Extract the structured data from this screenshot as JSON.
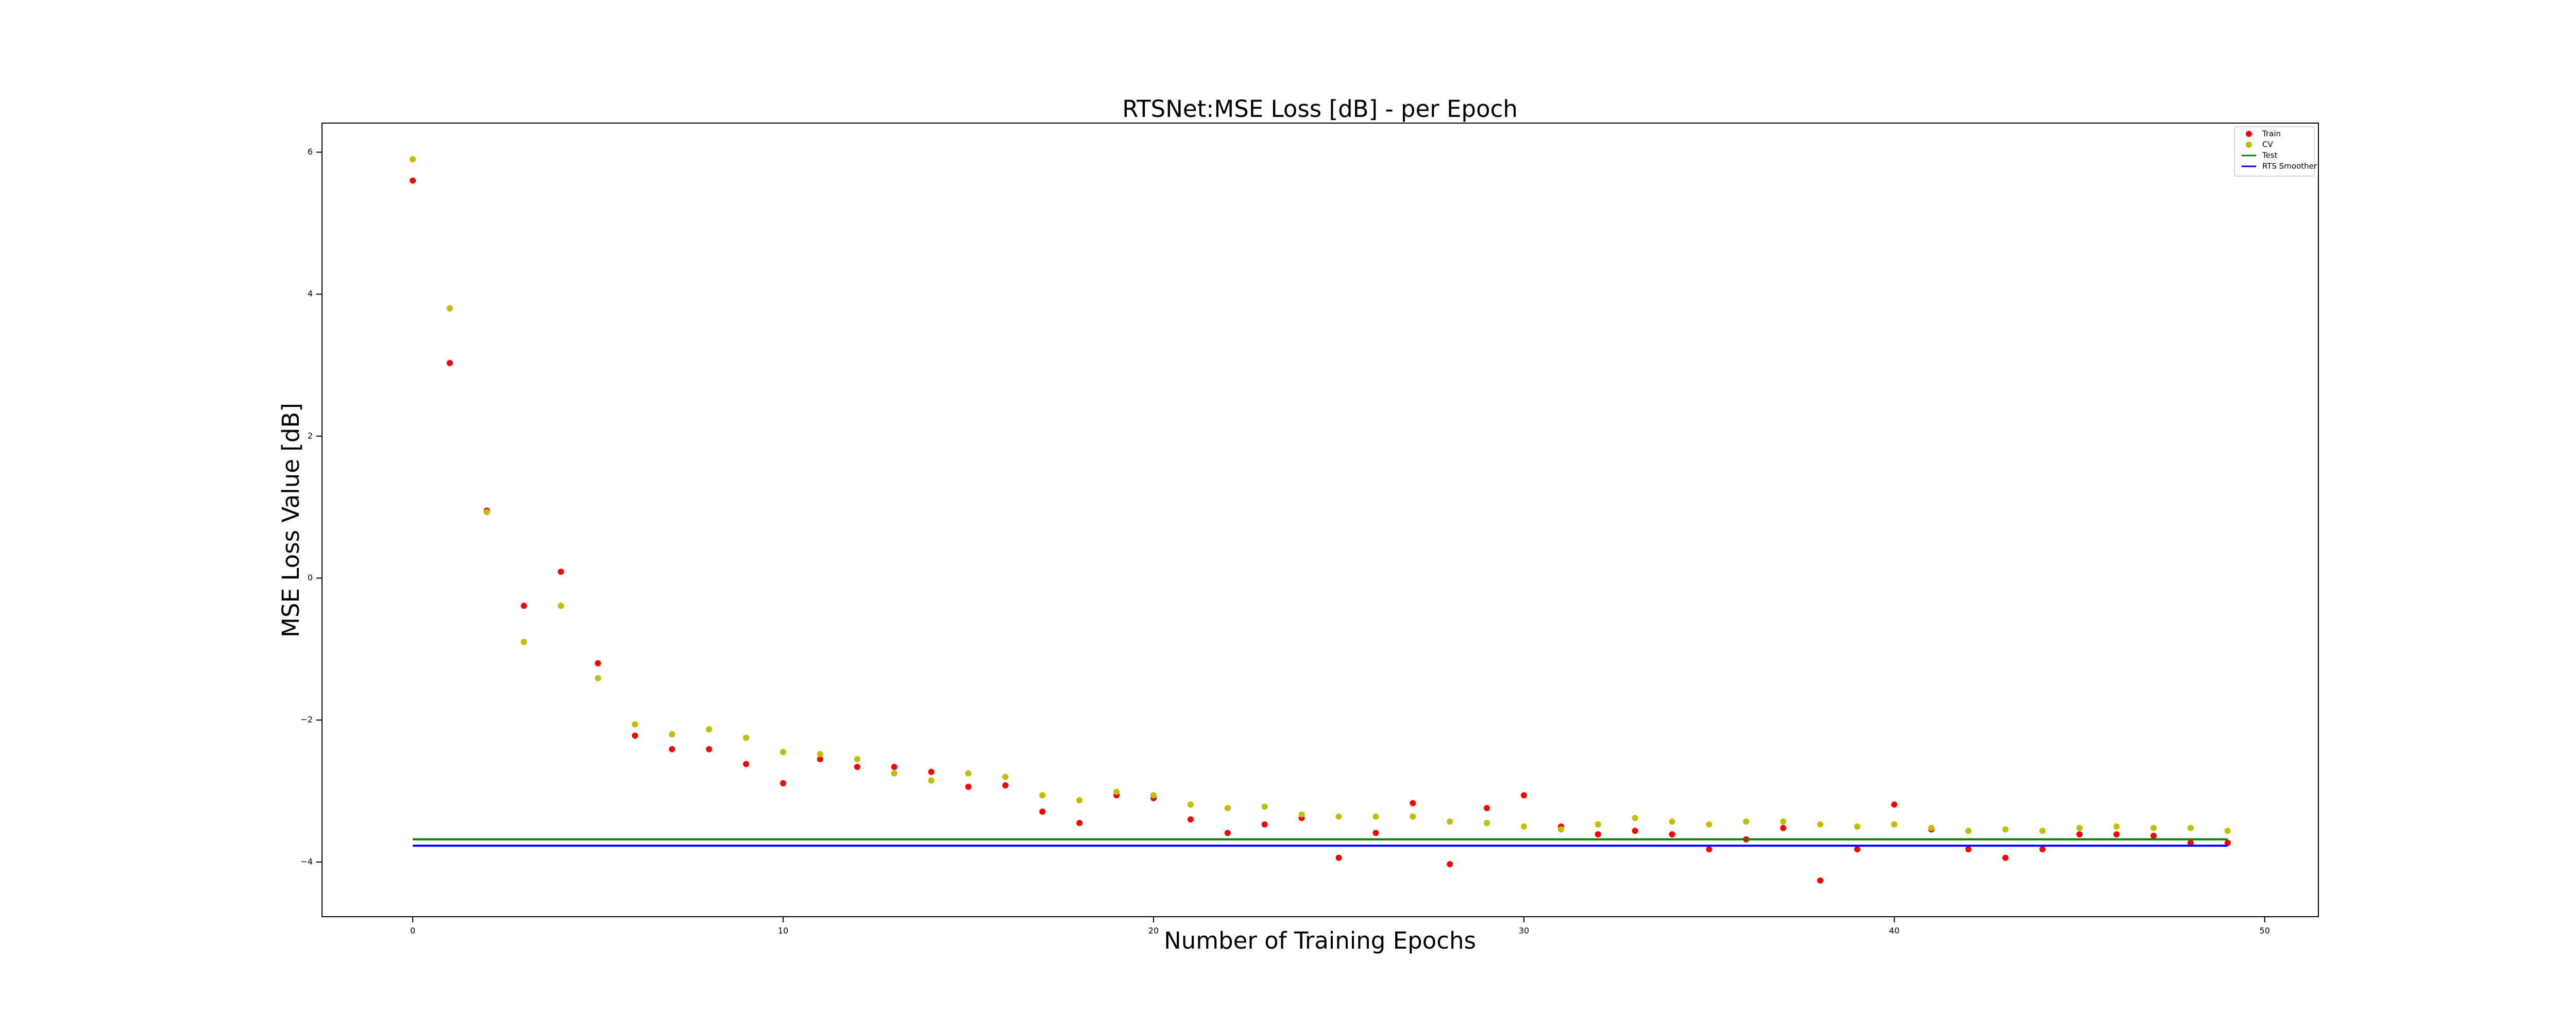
{
  "chart_data": {
    "type": "scatter",
    "title": "RTSNet:MSE Loss [dB] - per Epoch",
    "xlabel": "Number of Training Epochs",
    "ylabel": "MSE Loss Value [dB]",
    "x": [
      0,
      1,
      2,
      3,
      4,
      5,
      6,
      7,
      8,
      9,
      10,
      11,
      12,
      13,
      14,
      15,
      16,
      17,
      18,
      19,
      20,
      21,
      22,
      23,
      24,
      25,
      26,
      27,
      28,
      29,
      30,
      31,
      32,
      33,
      34,
      35,
      36,
      37,
      38,
      39,
      40,
      41,
      42,
      43,
      44,
      45,
      46,
      47,
      48,
      49
    ],
    "series": [
      {
        "name": "Train",
        "color": "#ff0000",
        "style": "points",
        "values": [
          5.6,
          3.03,
          0.95,
          -0.39,
          0.09,
          -1.2,
          -2.22,
          -2.41,
          -2.41,
          -2.62,
          -2.89,
          -2.55,
          -2.66,
          -2.66,
          -2.73,
          -2.94,
          -2.92,
          -3.29,
          -3.45,
          -3.06,
          -3.1,
          -3.4,
          -3.59,
          -3.47,
          -3.38,
          -3.94,
          -3.59,
          -3.17,
          -4.03,
          -3.24,
          -3.06,
          -3.5,
          -3.61,
          -3.56,
          -3.61,
          -3.82,
          -3.68,
          -3.52,
          -4.26,
          -3.82,
          -3.19,
          -3.54,
          -3.82,
          -3.94,
          -3.82,
          -3.61,
          -3.61,
          -3.63,
          -3.73,
          -3.73
        ]
      },
      {
        "name": "CV",
        "color": "#bfbf00",
        "style": "points",
        "values": [
          5.9,
          3.8,
          0.93,
          -0.9,
          -0.39,
          -1.41,
          -2.06,
          -2.2,
          -2.13,
          -2.25,
          -2.45,
          -2.48,
          -2.55,
          -2.75,
          -2.85,
          -2.75,
          -2.8,
          -3.06,
          -3.13,
          -3.01,
          -3.06,
          -3.19,
          -3.24,
          -3.22,
          -3.33,
          -3.36,
          -3.36,
          -3.36,
          -3.43,
          -3.45,
          -3.5,
          -3.54,
          -3.47,
          -3.38,
          -3.43,
          -3.47,
          -3.43,
          -3.43,
          -3.47,
          -3.5,
          -3.47,
          -3.52,
          -3.56,
          -3.54,
          -3.56,
          -3.52,
          -3.5,
          -3.52,
          -3.52,
          -3.56
        ]
      },
      {
        "name": "Test",
        "color": "#008000",
        "style": "line",
        "x": [
          0,
          49
        ],
        "values": [
          -3.68,
          -3.68
        ]
      },
      {
        "name": "RTS Smoother",
        "color": "#0000ff",
        "style": "line",
        "x": [
          0,
          49
        ],
        "values": [
          -3.77,
          -3.77
        ]
      }
    ],
    "xlim": [
      -2.45,
      51.45
    ],
    "ylim": [
      -4.77,
      6.41
    ],
    "xticks": [
      0,
      10,
      20,
      30,
      40,
      50
    ],
    "yticks": [
      {
        "value": -4,
        "label": "−4"
      },
      {
        "value": -2,
        "label": "−2"
      },
      0,
      2,
      4,
      6
    ],
    "legend": "upper right",
    "grid": false
  }
}
